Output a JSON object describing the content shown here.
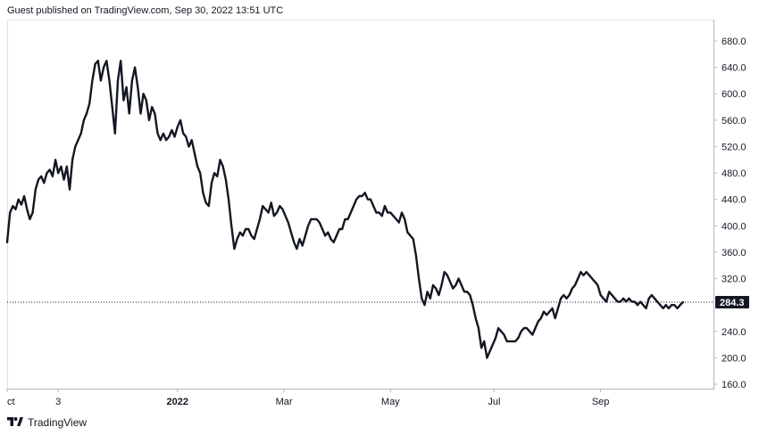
{
  "header": {
    "text": "Guest published on TradingView.com, Sep 30, 2022 13:51 UTC"
  },
  "footer": {
    "brand": "TradingView"
  },
  "colors": {
    "line": "#131722",
    "badge": "#131722",
    "grid": "#e0e3eb"
  },
  "chart_data": {
    "type": "line",
    "title": "",
    "xlabel": "",
    "ylabel": "",
    "ylim": [
      150,
      700
    ],
    "y_ticks": [
      "680.0",
      "640.0",
      "600.0",
      "560.0",
      "520.0",
      "480.0",
      "440.0",
      "400.0",
      "360.0",
      "320.0",
      "240.0",
      "200.0",
      "160.0"
    ],
    "x_ticks": [
      {
        "label": "Oct",
        "display": "ct"
      },
      {
        "label": "3",
        "display": "3"
      },
      {
        "label": "2022",
        "display": "2022",
        "bold": true
      },
      {
        "label": "Mar",
        "display": "Mar"
      },
      {
        "label": "May",
        "display": "May"
      },
      {
        "label": "Jul",
        "display": "Jul"
      },
      {
        "label": "Sep",
        "display": "Sep"
      }
    ],
    "last_value": "284.3",
    "grid": false,
    "series": [
      {
        "values": [
          [
            0,
            375
          ],
          [
            2,
            420
          ],
          [
            4,
            430
          ],
          [
            6,
            425
          ],
          [
            8,
            440
          ],
          [
            10,
            432
          ],
          [
            12,
            445
          ],
          [
            14,
            425
          ],
          [
            16,
            410
          ],
          [
            18,
            420
          ],
          [
            20,
            455
          ],
          [
            22,
            470
          ],
          [
            24,
            475
          ],
          [
            26,
            465
          ],
          [
            28,
            480
          ],
          [
            30,
            485
          ],
          [
            32,
            475
          ],
          [
            34,
            500
          ],
          [
            36,
            480
          ],
          [
            38,
            490
          ],
          [
            40,
            470
          ],
          [
            42,
            490
          ],
          [
            44,
            455
          ],
          [
            46,
            500
          ],
          [
            48,
            520
          ],
          [
            50,
            530
          ],
          [
            52,
            540
          ],
          [
            54,
            560
          ],
          [
            56,
            570
          ],
          [
            58,
            585
          ],
          [
            60,
            620
          ],
          [
            62,
            645
          ],
          [
            64,
            650
          ],
          [
            66,
            620
          ],
          [
            68,
            640
          ],
          [
            70,
            650
          ],
          [
            72,
            620
          ],
          [
            74,
            580
          ],
          [
            76,
            540
          ],
          [
            78,
            620
          ],
          [
            80,
            650
          ],
          [
            82,
            590
          ],
          [
            84,
            610
          ],
          [
            86,
            570
          ],
          [
            88,
            620
          ],
          [
            90,
            640
          ],
          [
            92,
            610
          ],
          [
            94,
            570
          ],
          [
            96,
            600
          ],
          [
            98,
            590
          ],
          [
            100,
            560
          ],
          [
            102,
            580
          ],
          [
            104,
            570
          ],
          [
            106,
            540
          ],
          [
            108,
            530
          ],
          [
            110,
            540
          ],
          [
            112,
            530
          ],
          [
            114,
            535
          ],
          [
            116,
            545
          ],
          [
            118,
            535
          ],
          [
            120,
            550
          ],
          [
            122,
            560
          ],
          [
            124,
            540
          ],
          [
            126,
            535
          ],
          [
            128,
            520
          ],
          [
            130,
            530
          ],
          [
            132,
            510
          ],
          [
            134,
            490
          ],
          [
            136,
            480
          ],
          [
            138,
            450
          ],
          [
            140,
            435
          ],
          [
            142,
            430
          ],
          [
            144,
            465
          ],
          [
            146,
            480
          ],
          [
            148,
            475
          ],
          [
            150,
            500
          ],
          [
            152,
            490
          ],
          [
            154,
            470
          ],
          [
            156,
            440
          ],
          [
            158,
            400
          ],
          [
            160,
            365
          ],
          [
            162,
            380
          ],
          [
            164,
            390
          ],
          [
            166,
            385
          ],
          [
            168,
            395
          ],
          [
            170,
            395
          ],
          [
            172,
            385
          ],
          [
            174,
            380
          ],
          [
            176,
            395
          ],
          [
            178,
            410
          ],
          [
            180,
            430
          ],
          [
            182,
            425
          ],
          [
            184,
            420
          ],
          [
            186,
            435
          ],
          [
            188,
            415
          ],
          [
            190,
            420
          ],
          [
            192,
            430
          ],
          [
            194,
            425
          ],
          [
            196,
            415
          ],
          [
            198,
            405
          ],
          [
            200,
            390
          ],
          [
            202,
            375
          ],
          [
            204,
            365
          ],
          [
            206,
            380
          ],
          [
            208,
            370
          ],
          [
            210,
            385
          ],
          [
            212,
            400
          ],
          [
            214,
            410
          ],
          [
            216,
            410
          ],
          [
            218,
            410
          ],
          [
            220,
            405
          ],
          [
            222,
            395
          ],
          [
            224,
            385
          ],
          [
            226,
            390
          ],
          [
            228,
            380
          ],
          [
            230,
            375
          ],
          [
            232,
            385
          ],
          [
            234,
            395
          ],
          [
            236,
            395
          ],
          [
            238,
            410
          ],
          [
            240,
            410
          ],
          [
            242,
            420
          ],
          [
            244,
            430
          ],
          [
            246,
            440
          ],
          [
            248,
            445
          ],
          [
            250,
            445
          ],
          [
            252,
            450
          ],
          [
            254,
            440
          ],
          [
            256,
            440
          ],
          [
            258,
            430
          ],
          [
            260,
            420
          ],
          [
            262,
            420
          ],
          [
            264,
            415
          ],
          [
            266,
            430
          ],
          [
            268,
            420
          ],
          [
            270,
            420
          ],
          [
            272,
            415
          ],
          [
            274,
            410
          ],
          [
            276,
            405
          ],
          [
            278,
            420
          ],
          [
            280,
            410
          ],
          [
            282,
            390
          ],
          [
            284,
            385
          ],
          [
            286,
            380
          ],
          [
            288,
            355
          ],
          [
            290,
            320
          ],
          [
            292,
            290
          ],
          [
            294,
            280
          ],
          [
            296,
            300
          ],
          [
            298,
            290
          ],
          [
            300,
            310
          ],
          [
            302,
            305
          ],
          [
            304,
            295
          ],
          [
            306,
            310
          ],
          [
            308,
            330
          ],
          [
            310,
            325
          ],
          [
            312,
            315
          ],
          [
            314,
            305
          ],
          [
            316,
            310
          ],
          [
            318,
            320
          ],
          [
            320,
            310
          ],
          [
            322,
            300
          ],
          [
            324,
            300
          ],
          [
            326,
            295
          ],
          [
            328,
            280
          ],
          [
            330,
            260
          ],
          [
            332,
            245
          ],
          [
            334,
            215
          ],
          [
            336,
            225
          ],
          [
            338,
            200
          ],
          [
            340,
            210
          ],
          [
            342,
            220
          ],
          [
            344,
            230
          ],
          [
            346,
            245
          ],
          [
            348,
            240
          ],
          [
            350,
            235
          ],
          [
            352,
            225
          ],
          [
            354,
            225
          ],
          [
            356,
            225
          ],
          [
            358,
            225
          ],
          [
            360,
            230
          ],
          [
            362,
            240
          ],
          [
            364,
            245
          ],
          [
            366,
            245
          ],
          [
            368,
            240
          ],
          [
            370,
            235
          ],
          [
            372,
            245
          ],
          [
            374,
            255
          ],
          [
            376,
            260
          ],
          [
            378,
            270
          ],
          [
            380,
            265
          ],
          [
            382,
            270
          ],
          [
            384,
            275
          ],
          [
            386,
            260
          ],
          [
            388,
            275
          ],
          [
            390,
            290
          ],
          [
            392,
            295
          ],
          [
            394,
            290
          ],
          [
            396,
            295
          ],
          [
            398,
            305
          ],
          [
            400,
            310
          ],
          [
            402,
            320
          ],
          [
            404,
            330
          ],
          [
            406,
            325
          ],
          [
            408,
            330
          ],
          [
            410,
            325
          ],
          [
            412,
            320
          ],
          [
            414,
            315
          ],
          [
            416,
            310
          ],
          [
            418,
            295
          ],
          [
            420,
            290
          ],
          [
            422,
            285
          ],
          [
            424,
            300
          ],
          [
            426,
            295
          ],
          [
            428,
            290
          ],
          [
            430,
            285
          ],
          [
            432,
            285
          ],
          [
            434,
            290
          ],
          [
            436,
            285
          ],
          [
            438,
            290
          ],
          [
            440,
            285
          ],
          [
            442,
            285
          ],
          [
            444,
            280
          ],
          [
            446,
            285
          ],
          [
            448,
            280
          ],
          [
            450,
            275
          ],
          [
            452,
            290
          ],
          [
            454,
            295
          ],
          [
            456,
            290
          ],
          [
            458,
            285
          ],
          [
            460,
            280
          ],
          [
            462,
            275
          ],
          [
            464,
            280
          ],
          [
            466,
            275
          ],
          [
            468,
            280
          ],
          [
            470,
            280
          ],
          [
            472,
            275
          ],
          [
            474,
            280
          ],
          [
            476,
            284.3
          ]
        ]
      }
    ],
    "x_tick_positions": [
      0,
      36,
      120,
      195,
      270,
      343,
      418
    ]
  }
}
